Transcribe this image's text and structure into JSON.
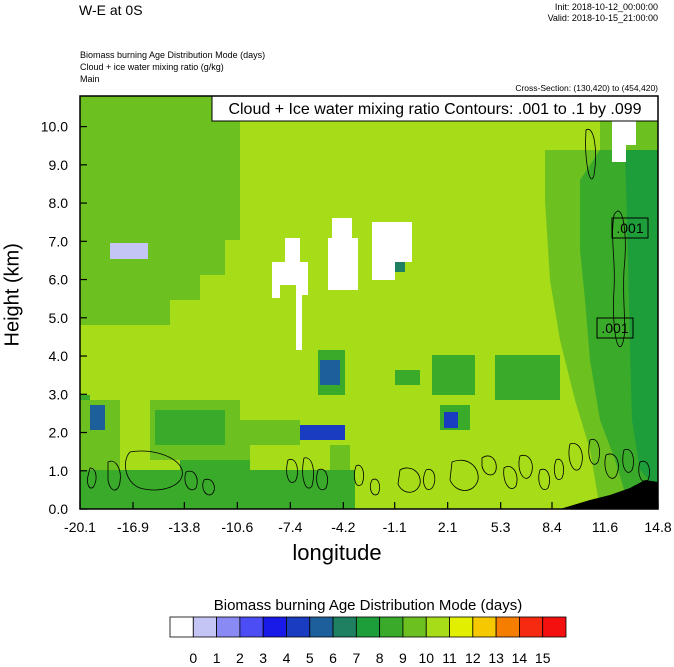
{
  "header": {
    "title": "W-E at 0S",
    "init": "Init: 2018-10-12_00:00:00",
    "valid": "Valid: 2018-10-15_21:00:00",
    "variables": [
      "Biomass burning Age Distribution Mode   (days)",
      "Cloud + ice water mixing ratio   (g/kg)",
      "Main"
    ],
    "cross_section": "Cross-Section: (130,420) to (454,420)"
  },
  "chart_data": {
    "type": "heatmap",
    "title": "W-E at 0S",
    "xlabel": "longitude",
    "ylabel": "Height (km)",
    "x_ticks": [
      "-20.1",
      "-16.9",
      "-13.8",
      "-10.6",
      "-7.4",
      "-4.2",
      "-1.1",
      "2.1",
      "5.3",
      "8.4",
      "11.6",
      "14.8"
    ],
    "y_ticks": [
      "0.0",
      "1.0",
      "2.0",
      "3.0",
      "4.0",
      "5.0",
      "6.0",
      "7.0",
      "8.0",
      "9.0",
      "10.0"
    ],
    "xlim": [
      -20.1,
      14.8
    ],
    "ylim": [
      0,
      10.8
    ],
    "contour_title": "Cloud + Ice water mixing ratio Contours: .001 to .1 by .099",
    "contour_labels": [
      ".001",
      ".001"
    ],
    "colorbar": {
      "title": "Biomass burning Age Distribution Mode  (days)",
      "labels": [
        "0",
        "1",
        "2",
        "3",
        "4",
        "5",
        "6",
        "7",
        "8",
        "9",
        "10",
        "11",
        "12",
        "13",
        "14",
        "15"
      ],
      "colors": [
        "#ffffff",
        "#c5c5f5",
        "#8a8af5",
        "#4d4df5",
        "#1a1ae8",
        "#1a3cc0",
        "#1c5f9a",
        "#1e8060",
        "#1e9e3a",
        "#3aaa2a",
        "#6cc020",
        "#a6dc18",
        "#e2f000",
        "#f5c800",
        "#f57d00",
        "#f52a10",
        "#f51010"
      ]
    }
  }
}
